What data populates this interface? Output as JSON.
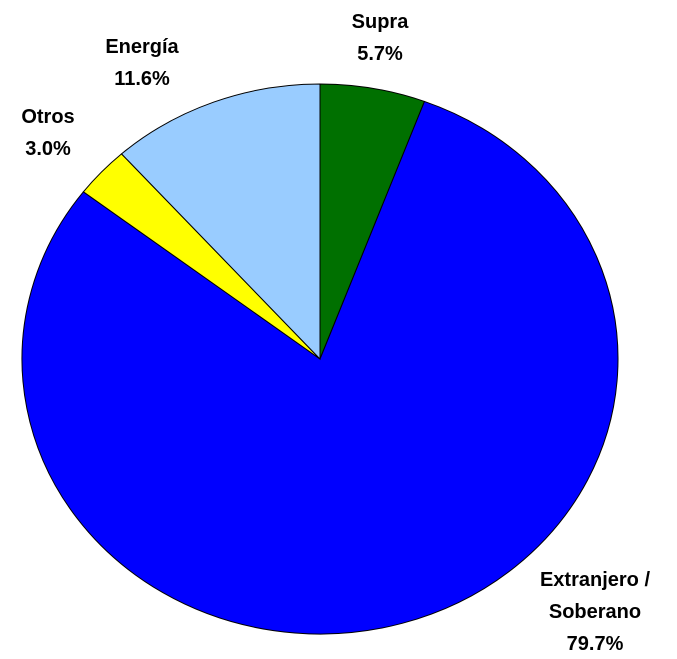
{
  "chart_data": {
    "type": "pie",
    "categories": [
      "Supra",
      "Extranjero / Soberano",
      "Otros",
      "Energía"
    ],
    "values": [
      5.7,
      79.7,
      3.0,
      11.6
    ],
    "value_labels": [
      "5.7%",
      "79.7%",
      "3.0%",
      "11.6%"
    ],
    "colors": [
      "#007000",
      "#0000ff",
      "#ffff00",
      "#99ccff"
    ]
  }
}
